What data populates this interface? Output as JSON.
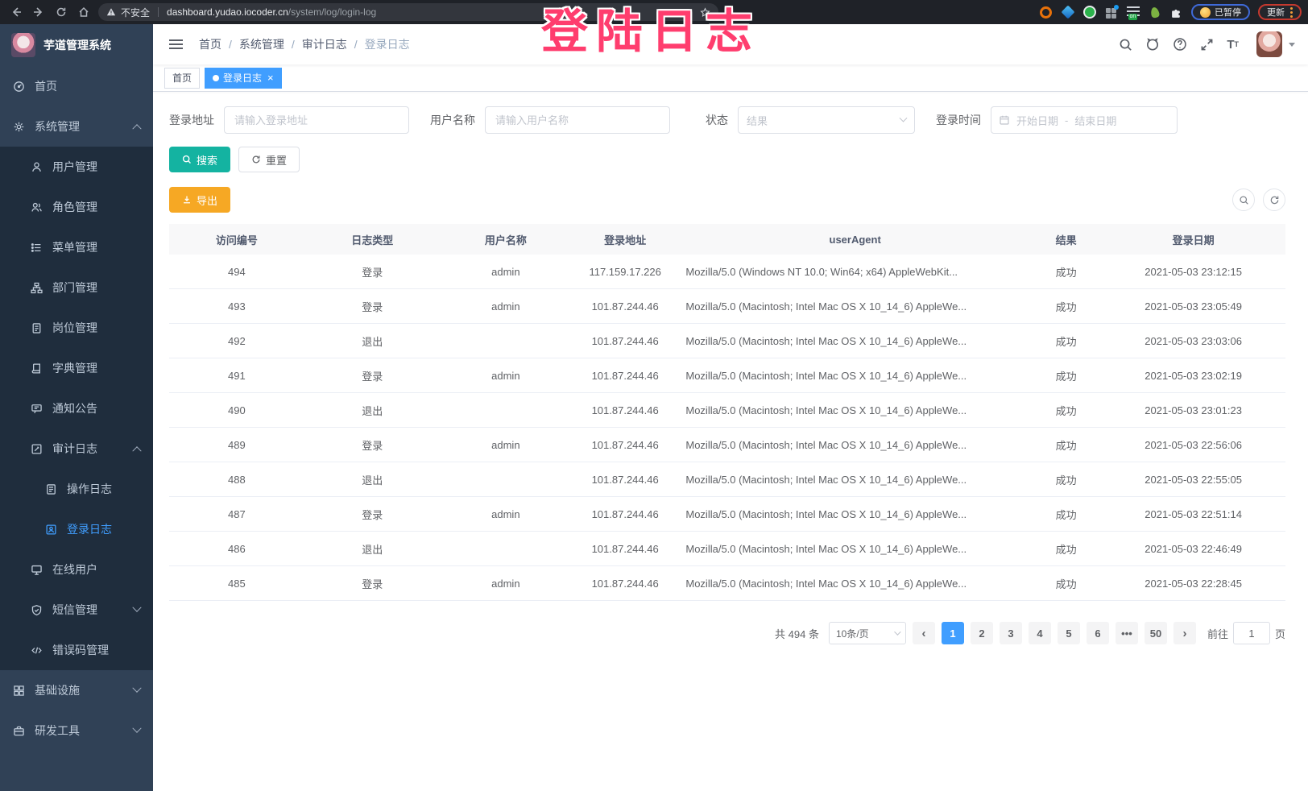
{
  "colors": {
    "sidebar": "#304156",
    "submenu": "#1f2d3d",
    "accent": "#409EFF",
    "search": "#14B3A1",
    "warning": "#F6A824",
    "wm": "#FF3D6E"
  },
  "watermark": {
    "text": "登陆日志"
  },
  "browser": {
    "security_label": "不安全",
    "url_host": "dashboard.yudao.iocoder.cn",
    "url_path": "/system/log/login-log",
    "ext_on_badge": "on",
    "paused_label": "已暂停",
    "update_label": "更新"
  },
  "sidebar": {
    "logo_title": "芋道管理系统",
    "menu": [
      {
        "name": "home",
        "label": "首页",
        "icon": "home",
        "level": 0
      },
      {
        "name": "system-management",
        "label": "系统管理",
        "icon": "gear",
        "level": 0,
        "chevron": "up"
      },
      {
        "name": "user-management",
        "label": "用户管理",
        "icon": "user",
        "level": 1
      },
      {
        "name": "role-management",
        "label": "角色管理",
        "icon": "role",
        "level": 1
      },
      {
        "name": "menu-management",
        "label": "菜单管理",
        "icon": "menu",
        "level": 1
      },
      {
        "name": "dept-management",
        "label": "部门管理",
        "icon": "tree",
        "level": 1
      },
      {
        "name": "post-management",
        "label": "岗位管理",
        "icon": "post",
        "level": 1
      },
      {
        "name": "dict-management",
        "label": "字典管理",
        "icon": "dict",
        "level": 1
      },
      {
        "name": "notice-announcement",
        "label": "通知公告",
        "icon": "notice",
        "level": 1
      },
      {
        "name": "audit-log",
        "label": "审计日志",
        "icon": "audit",
        "level": 1,
        "chevron": "up"
      },
      {
        "name": "operation-log",
        "label": "操作日志",
        "icon": "oplog",
        "level": 2
      },
      {
        "name": "login-log",
        "label": "登录日志",
        "icon": "loginlog",
        "level": 2,
        "active": true
      },
      {
        "name": "online-users",
        "label": "在线用户",
        "icon": "online",
        "level": 1
      },
      {
        "name": "sms-management",
        "label": "短信管理",
        "icon": "sms",
        "level": 1,
        "chevron": "down"
      },
      {
        "name": "error-code-management",
        "label": "错误码管理",
        "icon": "errcode",
        "level": 1
      },
      {
        "name": "infrastructure",
        "label": "基础设施",
        "icon": "infra",
        "level": 0,
        "chevron": "down"
      },
      {
        "name": "dev-tools",
        "label": "研发工具",
        "icon": "tool",
        "level": 0,
        "chevron": "down"
      }
    ]
  },
  "header": {
    "breadcrumb": [
      "首页",
      "系统管理",
      "审计日志",
      "登录日志"
    ]
  },
  "tags": [
    {
      "label": "首页",
      "active": false,
      "closable": false
    },
    {
      "label": "登录日志",
      "active": true,
      "closable": true
    }
  ],
  "filters": {
    "login_address_label": "登录地址",
    "login_address_placeholder": "请输入登录地址",
    "username_label": "用户名称",
    "username_placeholder": "请输入用户名称",
    "status_label": "状态",
    "status_placeholder": "结果",
    "login_time_label": "登录时间",
    "date_start_placeholder": "开始日期",
    "date_separator": "-",
    "date_end_placeholder": "结束日期",
    "search_label": "搜索",
    "reset_label": "重置",
    "export_label": "导出"
  },
  "table": {
    "headers": [
      "访问编号",
      "日志类型",
      "用户名称",
      "登录地址",
      "userAgent",
      "结果",
      "登录日期"
    ],
    "rows": [
      {
        "id": "494",
        "type": "登录",
        "user": "admin",
        "ip": "117.159.17.226",
        "agent": "Mozilla/5.0 (Windows NT 10.0; Win64; x64) AppleWebKit...",
        "result": "成功",
        "date": "2021-05-03 23:12:15"
      },
      {
        "id": "493",
        "type": "登录",
        "user": "admin",
        "ip": "101.87.244.46",
        "agent": "Mozilla/5.0 (Macintosh; Intel Mac OS X 10_14_6) AppleWe...",
        "result": "成功",
        "date": "2021-05-03 23:05:49"
      },
      {
        "id": "492",
        "type": "退出",
        "user": "",
        "ip": "101.87.244.46",
        "agent": "Mozilla/5.0 (Macintosh; Intel Mac OS X 10_14_6) AppleWe...",
        "result": "成功",
        "date": "2021-05-03 23:03:06"
      },
      {
        "id": "491",
        "type": "登录",
        "user": "admin",
        "ip": "101.87.244.46",
        "agent": "Mozilla/5.0 (Macintosh; Intel Mac OS X 10_14_6) AppleWe...",
        "result": "成功",
        "date": "2021-05-03 23:02:19"
      },
      {
        "id": "490",
        "type": "退出",
        "user": "",
        "ip": "101.87.244.46",
        "agent": "Mozilla/5.0 (Macintosh; Intel Mac OS X 10_14_6) AppleWe...",
        "result": "成功",
        "date": "2021-05-03 23:01:23"
      },
      {
        "id": "489",
        "type": "登录",
        "user": "admin",
        "ip": "101.87.244.46",
        "agent": "Mozilla/5.0 (Macintosh; Intel Mac OS X 10_14_6) AppleWe...",
        "result": "成功",
        "date": "2021-05-03 22:56:06"
      },
      {
        "id": "488",
        "type": "退出",
        "user": "",
        "ip": "101.87.244.46",
        "agent": "Mozilla/5.0 (Macintosh; Intel Mac OS X 10_14_6) AppleWe...",
        "result": "成功",
        "date": "2021-05-03 22:55:05"
      },
      {
        "id": "487",
        "type": "登录",
        "user": "admin",
        "ip": "101.87.244.46",
        "agent": "Mozilla/5.0 (Macintosh; Intel Mac OS X 10_14_6) AppleWe...",
        "result": "成功",
        "date": "2021-05-03 22:51:14"
      },
      {
        "id": "486",
        "type": "退出",
        "user": "",
        "ip": "101.87.244.46",
        "agent": "Mozilla/5.0 (Macintosh; Intel Mac OS X 10_14_6) AppleWe...",
        "result": "成功",
        "date": "2021-05-03 22:46:49"
      },
      {
        "id": "485",
        "type": "登录",
        "user": "admin",
        "ip": "101.87.244.46",
        "agent": "Mozilla/5.0 (Macintosh; Intel Mac OS X 10_14_6) AppleWe...",
        "result": "成功",
        "date": "2021-05-03 22:28:45"
      }
    ]
  },
  "pagination": {
    "total_text": "共 494 条",
    "page_size": "10条/页",
    "pages": [
      "1",
      "2",
      "3",
      "4",
      "5",
      "6",
      "•••",
      "50"
    ],
    "active_page": "1",
    "goto_label": "前往",
    "goto_value": "1",
    "goto_unit": "页"
  }
}
